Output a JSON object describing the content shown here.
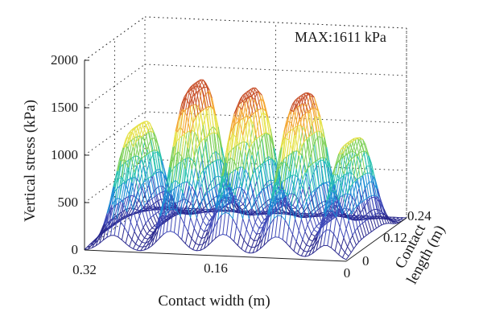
{
  "chart_data": {
    "type": "surface",
    "annotation": "MAX:1611 kPa",
    "zlabel": "Vertical stress (kPa)",
    "xlabel": "Contact width (m)",
    "ylabel_lines": [
      "Contact",
      "length (m)"
    ],
    "z_ticks": [
      "0",
      "500",
      "1000",
      "1500",
      "2000"
    ],
    "x_ticks": [
      "0.32",
      "0.16",
      "0"
    ],
    "y_ticks": [
      "0",
      "0.12",
      "0.24"
    ],
    "zlim": [
      0,
      2000
    ],
    "xlim": [
      0,
      0.32
    ],
    "ylim": [
      0,
      0.24
    ],
    "grid": true,
    "ribs": [
      {
        "width_center": 0.285,
        "half_width": 0.018,
        "peak": 1150
      },
      {
        "width_center": 0.215,
        "half_width": 0.02,
        "peak": 1611
      },
      {
        "width_center": 0.15,
        "half_width": 0.02,
        "peak": 1550
      },
      {
        "width_center": 0.085,
        "half_width": 0.02,
        "peak": 1530
      },
      {
        "width_center": 0.025,
        "half_width": 0.016,
        "peak": 1080
      }
    ],
    "colormap": [
      "#2b2a8f",
      "#3f49b8",
      "#1e8fd6",
      "#2bc2b0",
      "#7fd15a",
      "#e6e24a",
      "#f4a631",
      "#c8502a"
    ]
  }
}
